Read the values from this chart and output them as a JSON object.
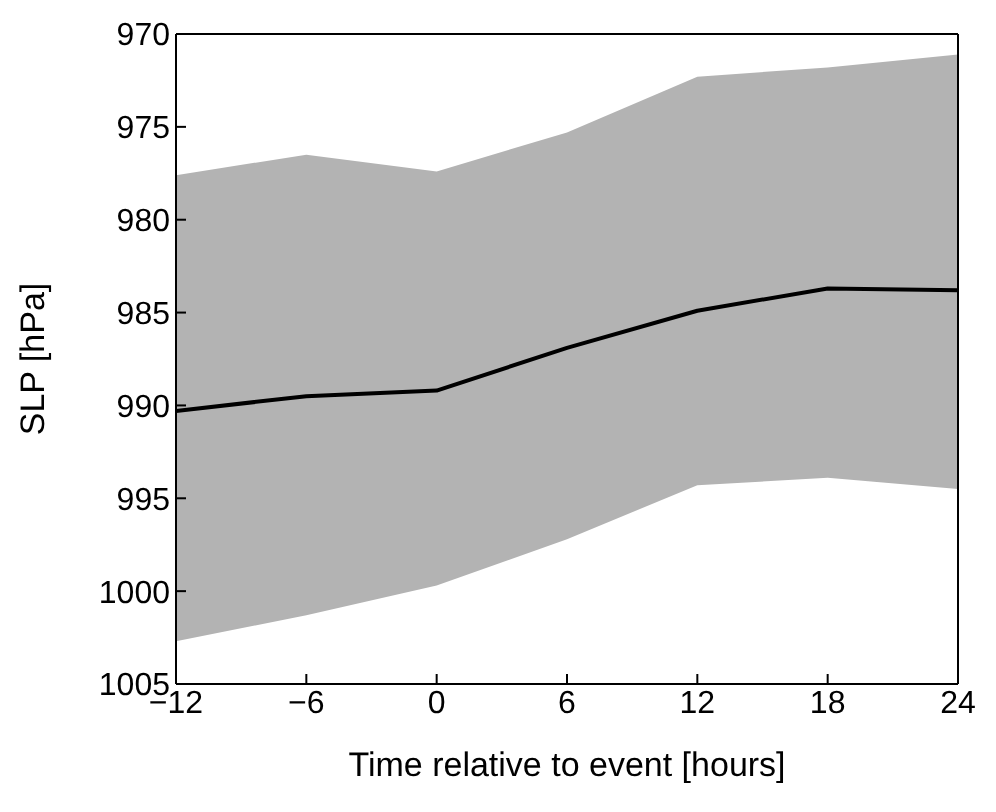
{
  "chart_data": {
    "type": "line",
    "xlabel": "Time relative to event [hours]",
    "ylabel": "SLP [hPa]",
    "x": [
      -12,
      -6,
      0,
      6,
      12,
      18,
      24
    ],
    "series": [
      {
        "color": "#000000",
        "values": [
          990.3,
          989.5,
          989.2,
          986.9,
          984.9,
          983.7,
          983.8
        ],
        "lower": [
          1002.7,
          1001.3,
          999.7,
          997.2,
          994.3,
          993.9,
          994.5
        ],
        "upper": [
          977.6,
          976.5,
          977.4,
          975.3,
          972.3,
          971.8,
          971.1
        ]
      }
    ],
    "xlim": [
      -12,
      24
    ],
    "xticks": [
      {
        "value": -12,
        "label": "−12"
      },
      {
        "value": -6,
        "label": "−6"
      },
      0,
      6,
      12,
      18,
      24
    ],
    "ylim": [
      1005,
      970
    ],
    "yticks": [
      970,
      975,
      980,
      985,
      990,
      995,
      1000,
      1005
    ],
    "grid": false,
    "legend": false,
    "marker": "none",
    "line_style": "solid"
  }
}
